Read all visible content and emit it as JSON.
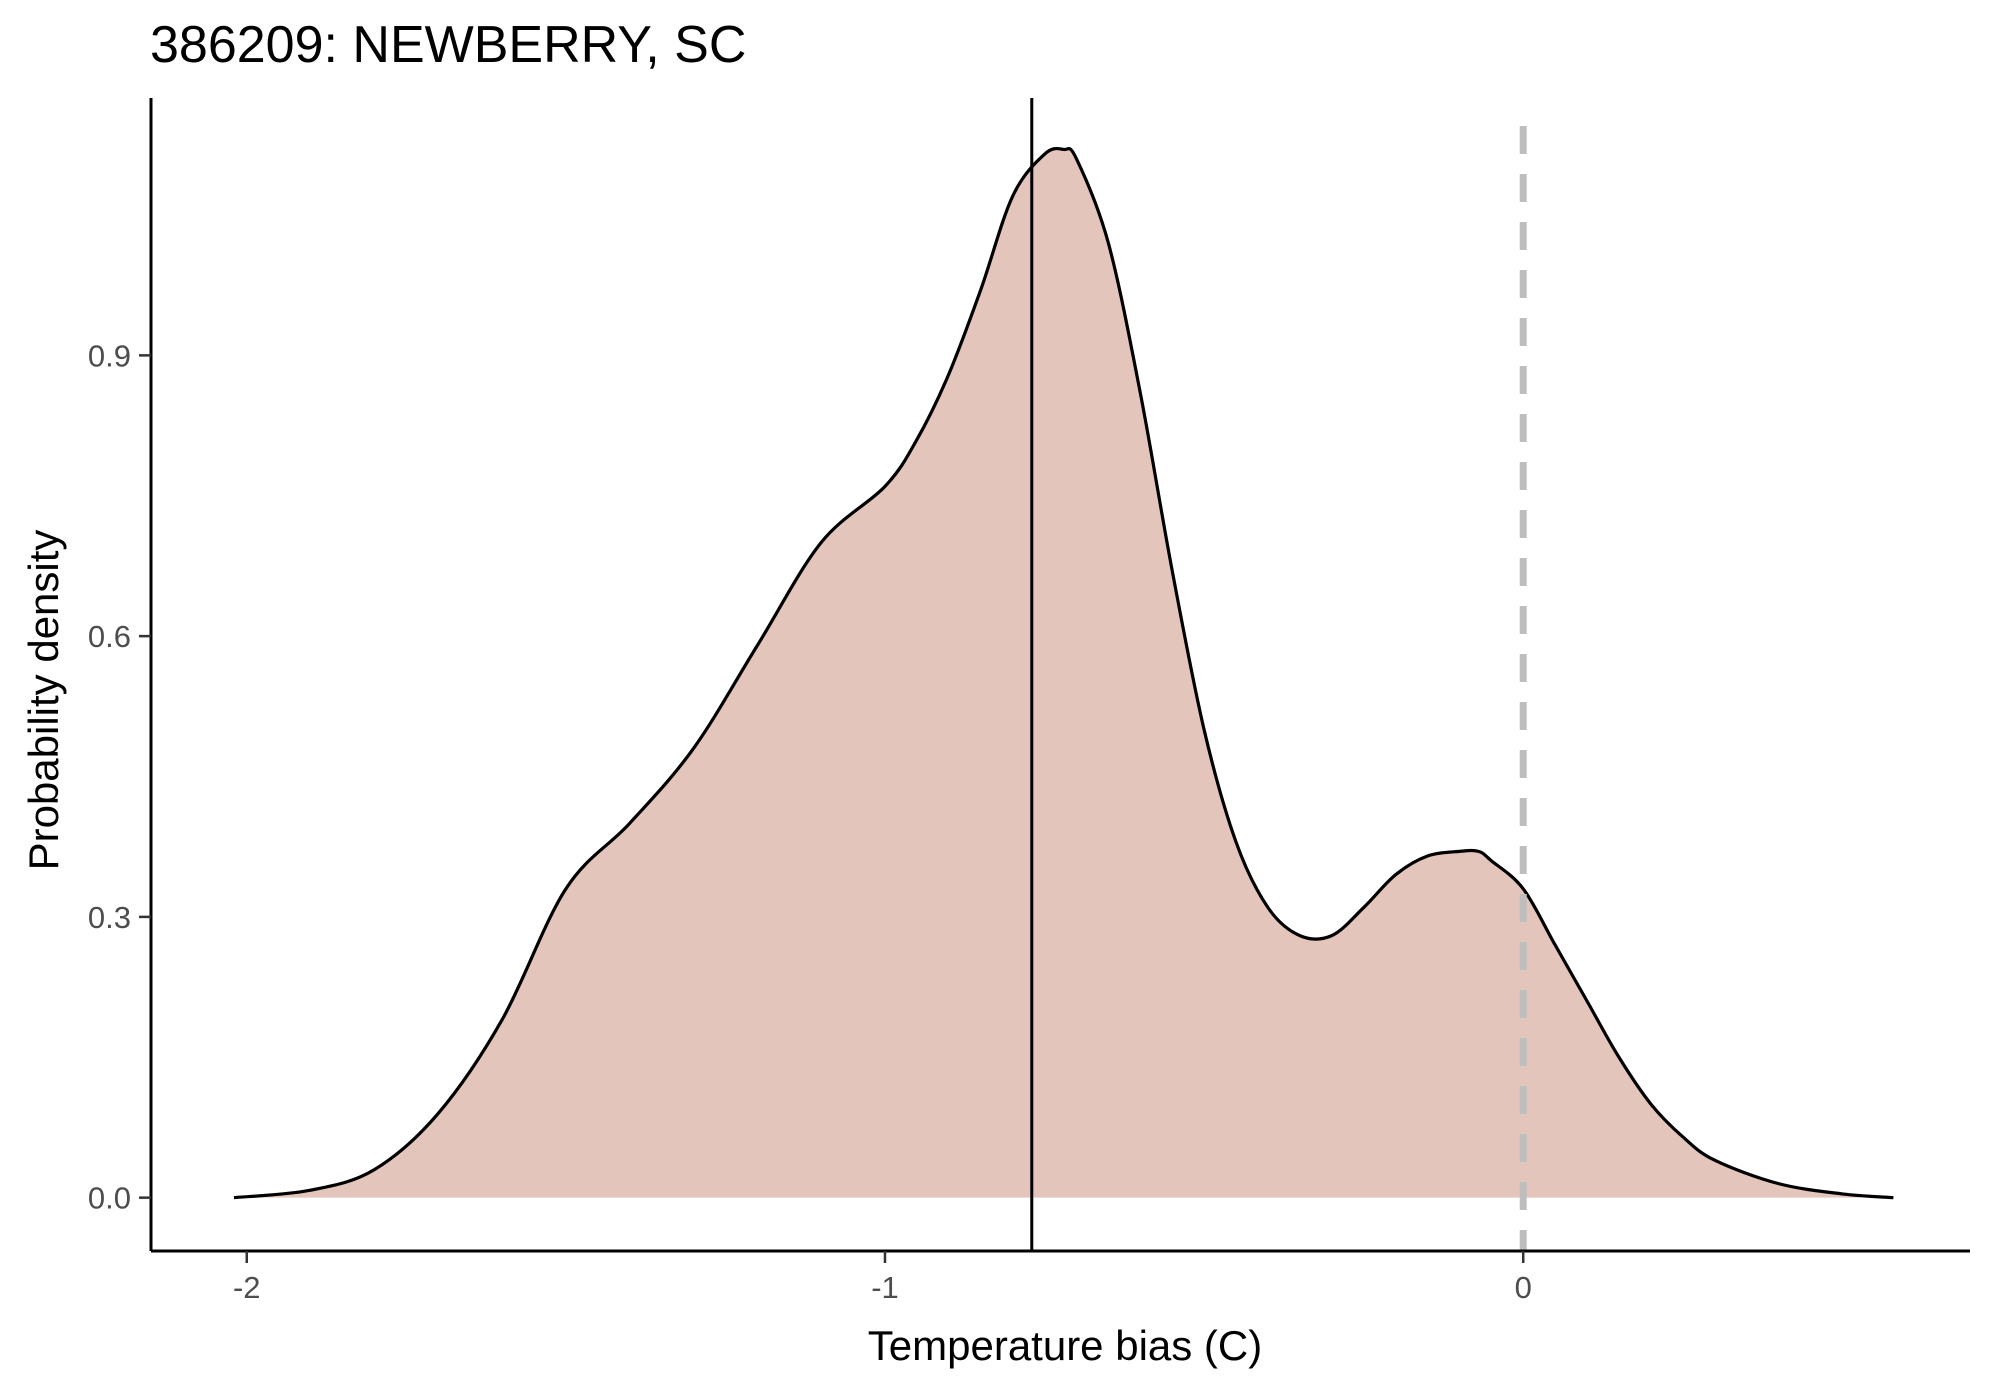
{
  "chart_data": {
    "type": "area",
    "title": "386209: NEWBERRY, SC",
    "xlabel": "Temperature bias (C)",
    "ylabel": "Probability density",
    "xlim": [
      -2.15,
      0.7
    ],
    "ylim": [
      -0.057,
      1.175
    ],
    "x_ticks": [
      -2,
      -1,
      0
    ],
    "x_tick_labels": [
      "-2",
      "-1",
      "0"
    ],
    "y_ticks": [
      0.0,
      0.3,
      0.6,
      0.9
    ],
    "y_tick_labels": [
      "0.0",
      "0.3",
      "0.6",
      "0.9"
    ],
    "grid": false,
    "legend": "none",
    "colors": {
      "fill": "#e3c5bc",
      "curve": "#000000",
      "mean_line": "#000000",
      "zero_line": "#bebebe"
    },
    "vertical_lines": [
      {
        "x": -0.77,
        "style": "solid",
        "meaning": "mean bias"
      },
      {
        "x": 0.0,
        "style": "dashed",
        "meaning": "zero bias"
      }
    ],
    "density": {
      "x": [
        -2.02,
        -1.9,
        -1.8,
        -1.7,
        -1.6,
        -1.5,
        -1.4,
        -1.3,
        -1.2,
        -1.1,
        -1.0,
        -0.95,
        -0.9,
        -0.85,
        -0.8,
        -0.75,
        -0.72,
        -0.7,
        -0.65,
        -0.6,
        -0.55,
        -0.5,
        -0.45,
        -0.4,
        -0.35,
        -0.3,
        -0.25,
        -0.2,
        -0.15,
        -0.1,
        -0.07,
        -0.05,
        0.0,
        0.05,
        0.1,
        0.15,
        0.2,
        0.25,
        0.3,
        0.4,
        0.5,
        0.58
      ],
      "y": [
        0.0,
        0.008,
        0.03,
        0.09,
        0.19,
        0.33,
        0.4,
        0.48,
        0.59,
        0.7,
        0.76,
        0.81,
        0.88,
        0.97,
        1.07,
        1.115,
        1.12,
        1.11,
        1.02,
        0.86,
        0.67,
        0.5,
        0.38,
        0.31,
        0.28,
        0.28,
        0.31,
        0.345,
        0.365,
        0.37,
        0.37,
        0.36,
        0.33,
        0.27,
        0.21,
        0.15,
        0.1,
        0.065,
        0.04,
        0.015,
        0.004,
        0.0
      ]
    }
  }
}
